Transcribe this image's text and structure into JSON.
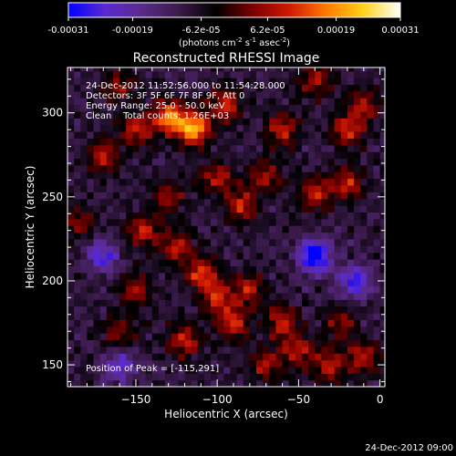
{
  "chart_data": {
    "type": "heatmap",
    "title": "Reconstructed RHESSI Image",
    "xlabel": "Heliocentric X (arcsec)",
    "ylabel": "Heliocentric Y (arcsec)",
    "xlim": [
      -192,
      3
    ],
    "ylim": [
      137,
      327
    ],
    "x_ticks": [
      -150,
      -100,
      -50,
      0
    ],
    "y_ticks": [
      150,
      200,
      250,
      300
    ],
    "colorbar": {
      "min": -0.00031,
      "max": 0.00031,
      "tick_values": [
        -0.00031,
        -0.00019,
        -6.2e-05,
        6.2e-05,
        0.00019,
        0.00031
      ],
      "tick_labels": [
        "-0.00031",
        "-0.00019",
        "-6.2e-05",
        "6.2e-05",
        "0.00019",
        "0.00031"
      ],
      "unit_base": "(photons cm",
      "unit_exp1": "-2",
      "unit_mid1": " s",
      "unit_exp2": "-1",
      "unit_mid2": " asec",
      "unit_exp3": "-2",
      "unit_end": ")",
      "stops": [
        "#0000ff",
        "#5a2ad0",
        "#5a2a8a",
        "#3a1a4a",
        "#000000",
        "#7a0000",
        "#d21a00",
        "#ff7a00",
        "#ffd21a",
        "#ffffff"
      ]
    },
    "annotations": [
      "24-Dec-2012 11:52:56.000 to 11:54:28.000",
      "Detectors: 3F 5F 6F 7F 8F 9F, Att 0",
      "Energy Range: 25.0 - 50.0 keV",
      "Clean    Total counts: 1.26E+03"
    ],
    "peak_label": "Position of Peak = [-115,291]",
    "peak_position": [
      -115,
      291
    ],
    "grid_step_arcsec": 4,
    "sources": [
      {
        "x": -115,
        "y": 291,
        "amp": 1.0
      },
      {
        "x": -130,
        "y": 298,
        "amp": 0.82
      },
      {
        "x": -95,
        "y": 305,
        "amp": 0.6
      },
      {
        "x": -150,
        "y": 290,
        "amp": 0.55
      },
      {
        "x": -170,
        "y": 275,
        "amp": 0.5
      },
      {
        "x": -60,
        "y": 290,
        "amp": 0.55
      },
      {
        "x": -20,
        "y": 290,
        "amp": 0.6
      },
      {
        "x": -10,
        "y": 305,
        "amp": 0.5
      },
      {
        "x": -85,
        "y": 245,
        "amp": 0.55
      },
      {
        "x": -100,
        "y": 262,
        "amp": 0.5
      },
      {
        "x": -70,
        "y": 262,
        "amp": 0.45
      },
      {
        "x": -40,
        "y": 252,
        "amp": 0.55
      },
      {
        "x": -20,
        "y": 258,
        "amp": 0.55
      },
      {
        "x": -130,
        "y": 250,
        "amp": 0.45
      },
      {
        "x": -145,
        "y": 230,
        "amp": 0.55
      },
      {
        "x": -125,
        "y": 220,
        "amp": 0.5
      },
      {
        "x": -110,
        "y": 205,
        "amp": 0.62
      },
      {
        "x": -100,
        "y": 190,
        "amp": 0.6
      },
      {
        "x": -90,
        "y": 175,
        "amp": 0.55
      },
      {
        "x": -80,
        "y": 195,
        "amp": 0.5
      },
      {
        "x": -150,
        "y": 195,
        "amp": 0.45
      },
      {
        "x": -160,
        "y": 170,
        "amp": 0.45
      },
      {
        "x": -120,
        "y": 165,
        "amp": 0.55
      },
      {
        "x": -60,
        "y": 175,
        "amp": 0.55
      },
      {
        "x": -50,
        "y": 158,
        "amp": 0.5
      },
      {
        "x": -30,
        "y": 150,
        "amp": 0.55
      },
      {
        "x": -10,
        "y": 155,
        "amp": 0.5
      },
      {
        "x": -70,
        "y": 150,
        "amp": 0.45
      },
      {
        "x": -25,
        "y": 175,
        "amp": 0.4
      },
      {
        "x": -185,
        "y": 235,
        "amp": 0.35
      },
      {
        "x": -40,
        "y": 320,
        "amp": 0.45
      },
      {
        "x": -160,
        "y": 315,
        "amp": 0.4
      }
    ],
    "negative_regions": [
      {
        "x": -40,
        "y": 215,
        "amp": -0.9
      },
      {
        "x": -15,
        "y": 200,
        "amp": -0.6
      },
      {
        "x": -170,
        "y": 215,
        "amp": -0.55
      },
      {
        "x": -160,
        "y": 150,
        "amp": -0.5
      }
    ]
  },
  "footer_timestamp": "24-Dec-2012 09:00"
}
